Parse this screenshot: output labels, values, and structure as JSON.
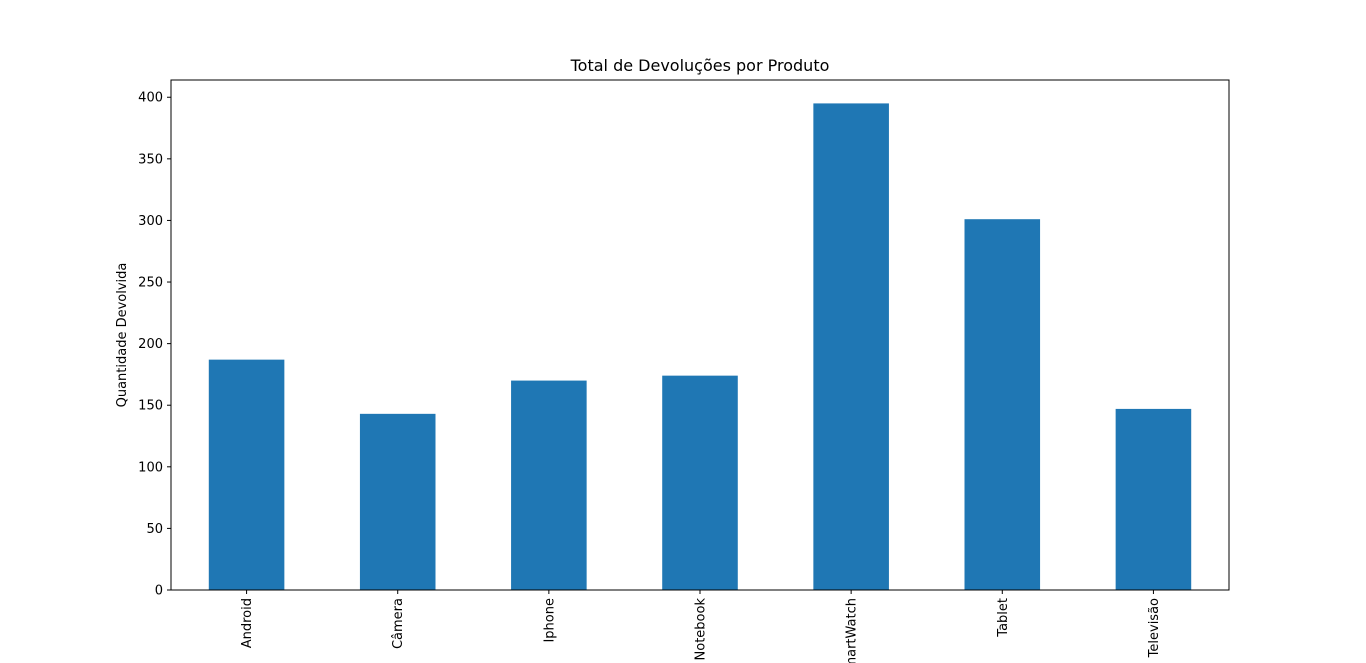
{
  "chart_data": {
    "type": "bar",
    "title": "Total de Devoluções por Produto",
    "xlabel": "",
    "ylabel": "Quantidade Devolvida",
    "categories": [
      "Android",
      "Câmera",
      "Iphone",
      "Notebook",
      "SmartWatch",
      "Tablet",
      "Televisão"
    ],
    "values": [
      187,
      143,
      170,
      174,
      395,
      301,
      147
    ],
    "ylim": [
      0,
      414
    ],
    "yticks": [
      0,
      50,
      100,
      150,
      200,
      250,
      300,
      350,
      400
    ],
    "grid": false,
    "legend": "none",
    "bar_color": "#1f77b4",
    "xtick_rotation": "vertical"
  }
}
